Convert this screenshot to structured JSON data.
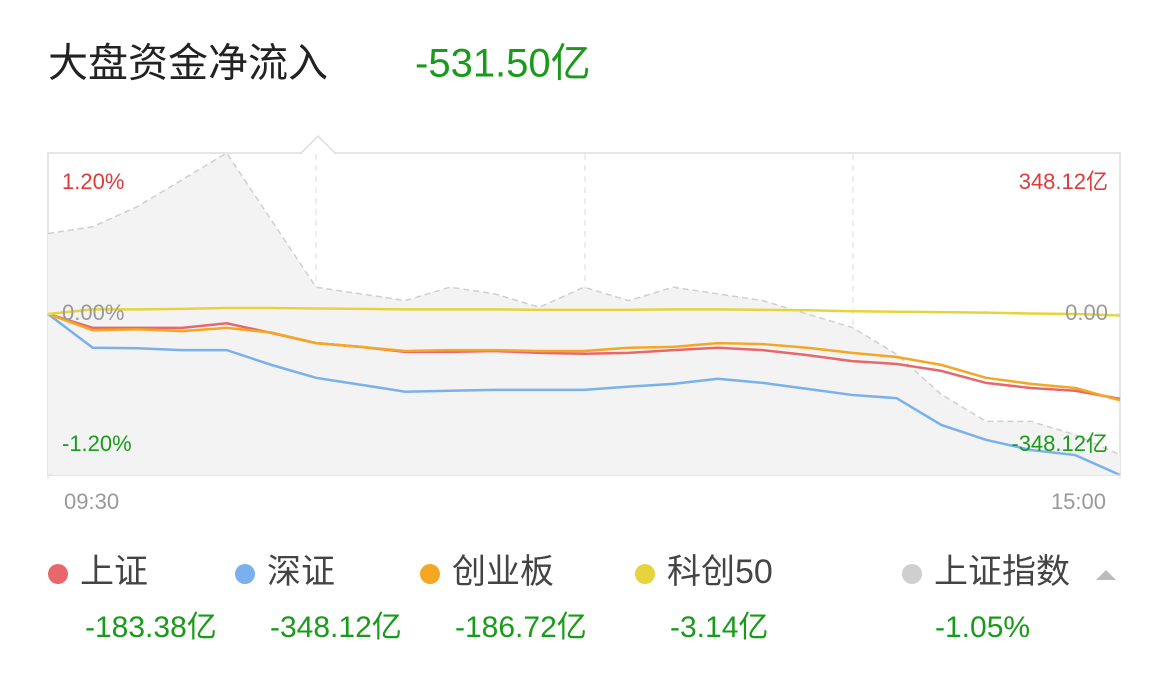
{
  "chart_data": {
    "type": "line",
    "title": "大盘资金净流入",
    "title_value": "-531.50亿",
    "x": [
      0,
      10,
      20,
      30,
      40,
      50,
      60,
      70,
      80,
      90,
      100,
      110,
      120,
      130,
      140,
      150,
      160,
      170,
      180,
      190,
      200,
      210,
      220,
      230,
      240
    ],
    "xlim": [
      0,
      240
    ],
    "xticks": [
      {
        "value": 0,
        "label": "09:30"
      },
      {
        "value": 240,
        "label": "15:00"
      }
    ],
    "ylim": [
      -1.2,
      1.2
    ],
    "yticks": [
      {
        "value": 1.2,
        "label": "1.20%"
      },
      {
        "value": 0,
        "label": "0.00%"
      },
      {
        "value": -1.2,
        "label": "-1.20%"
      }
    ],
    "y2lim": [
      -348.12,
      348.12
    ],
    "y2ticks": [
      {
        "value": 348.12,
        "label": "348.12亿"
      },
      {
        "value": 0,
        "label": "0.00"
      },
      {
        "value": -348.12,
        "label": "-348.12亿"
      }
    ],
    "series": [
      {
        "name": "上证",
        "color": "#e8676a",
        "axis": "y2",
        "legend_value": "-183.38亿",
        "values": [
          0,
          -30,
          -30,
          -30,
          -20,
          -41,
          -63,
          -71,
          -82,
          -82,
          -80,
          -84,
          -86,
          -84,
          -78,
          -73,
          -78,
          -89,
          -102,
          -108,
          -123,
          -149,
          -160,
          -166,
          -183.38
        ]
      },
      {
        "name": "深证",
        "color": "#7ab0ec",
        "axis": "y2",
        "legend_value": "-348.12亿",
        "values": [
          0,
          -73,
          -74,
          -78,
          -78,
          -110,
          -138,
          -153,
          -168,
          -166,
          -164,
          -164,
          -164,
          -157,
          -151,
          -140,
          -149,
          -162,
          -175,
          -182,
          -240,
          -272,
          -294,
          -305,
          -348.12
        ]
      },
      {
        "name": "创业板",
        "color": "#f5a623",
        "axis": "y2",
        "legend_value": "-186.72亿",
        "values": [
          0,
          -35,
          -33,
          -37,
          -30,
          -40,
          -63,
          -71,
          -80,
          -78,
          -78,
          -80,
          -80,
          -73,
          -71,
          -63,
          -65,
          -73,
          -84,
          -93,
          -110,
          -138,
          -151,
          -160,
          -186.72
        ]
      },
      {
        "name": "科创50",
        "color": "#e6d43c",
        "axis": "y2",
        "legend_value": "-3.14亿",
        "values": [
          0,
          10,
          10,
          11,
          13,
          13,
          12,
          11,
          10,
          10,
          10,
          9,
          9,
          9,
          10,
          10,
          9,
          8,
          6,
          5,
          4,
          3,
          1,
          0,
          -3.14
        ]
      },
      {
        "name": "上证指数",
        "color": "#cfcfcf",
        "axis": "y",
        "area": true,
        "legend_value": "-1.05%",
        "values": [
          0.6,
          0.65,
          0.8,
          1.0,
          1.2,
          0.7,
          0.2,
          0.15,
          0.1,
          0.2,
          0.15,
          0.05,
          0.2,
          0.1,
          0.2,
          0.15,
          0.1,
          0.0,
          -0.1,
          -0.3,
          -0.6,
          -0.8,
          -0.8,
          -0.9,
          -1.05
        ]
      }
    ],
    "value_color": "#1a9a1a"
  }
}
